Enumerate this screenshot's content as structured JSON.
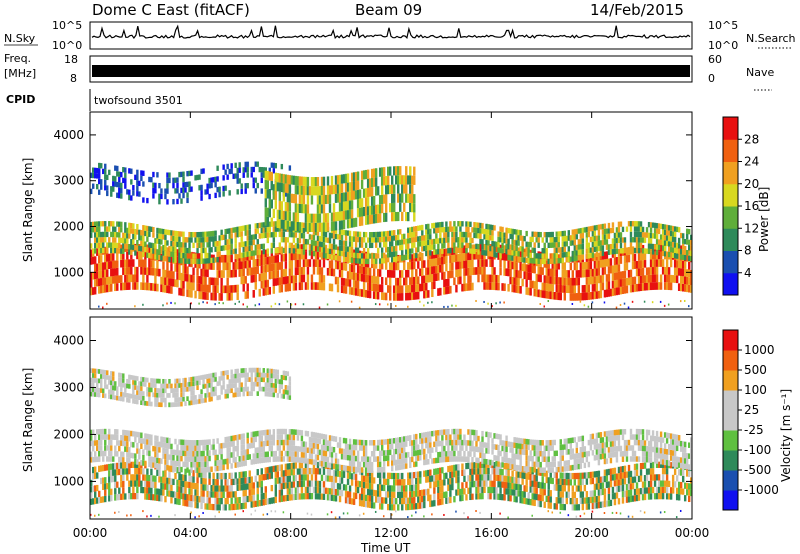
{
  "header": {
    "station": "Dome C East (fitACF)",
    "beam": "Beam 09",
    "date": "14/Feb/2015"
  },
  "summary_panels": {
    "nsky_label": "N.Sky",
    "nsky_ticks": [
      "10^5",
      "10^0"
    ],
    "nsearch_label": "N.Search",
    "nsearch_ticks": [
      "10^5",
      "10^0"
    ],
    "freq_label_top": "Freq.",
    "freq_label_unit": "[MHz]",
    "freq_ticks": [
      "18",
      "8"
    ],
    "nave_label": "Nave",
    "nave_ticks": [
      "60",
      "0"
    ],
    "cpid_label": "CPID",
    "cpid_value": "twofsound 3501"
  },
  "colors": {
    "power_scale": [
      "#1010f0",
      "#1a4fb0",
      "#2e8a5a",
      "#5fae3a",
      "#d8d820",
      "#f0a020",
      "#f06010",
      "#e81010"
    ],
    "velocity_scale": [
      "#e81010",
      "#f06010",
      "#f0a020",
      "#c8c8c8",
      "#c8c8c8",
      "#5fc040",
      "#2e8a5a",
      "#1a4fb0",
      "#1010f0"
    ]
  },
  "chart_data": [
    {
      "type": "heatmap",
      "panel": "power",
      "xlabel": "",
      "ylabel": "Slant Range [km]",
      "x_ticks": [
        "00:00",
        "04:00",
        "08:00",
        "12:00",
        "16:00",
        "20:00",
        "00:00"
      ],
      "x_hours": [
        0,
        4,
        8,
        12,
        16,
        20,
        24
      ],
      "xlim": [
        0,
        24
      ],
      "y_ticks": [
        1000,
        2000,
        3000,
        4000
      ],
      "ylim": [
        200,
        4500
      ],
      "colorbar_label": "Power [dB]",
      "colorbar_ticks": [
        "4",
        "8",
        "12",
        "16",
        "20",
        "24",
        "28"
      ],
      "colorbar_range": [
        0,
        32
      ],
      "echo_bands": [
        {
          "x_start": 0,
          "x_end": 24,
          "range_low": 500,
          "range_high": 1500,
          "level": "high"
        },
        {
          "x_start": 0,
          "x_end": 24,
          "range_low": 1300,
          "range_high": 2000,
          "level": "medium"
        },
        {
          "x_start": 0,
          "x_end": 8,
          "range_low": 2600,
          "range_high": 3300,
          "level": "low"
        },
        {
          "x_start": 7,
          "x_end": 13,
          "range_low": 2000,
          "range_high": 3200,
          "level": "medium"
        }
      ]
    },
    {
      "type": "heatmap",
      "panel": "velocity",
      "xlabel": "Time UT",
      "ylabel": "Slant Range [km]",
      "x_ticks": [
        "00:00",
        "04:00",
        "08:00",
        "12:00",
        "16:00",
        "20:00",
        "00:00"
      ],
      "x_hours": [
        0,
        4,
        8,
        12,
        16,
        20,
        24
      ],
      "xlim": [
        0,
        24
      ],
      "y_ticks": [
        1000,
        2000,
        3000,
        4000
      ],
      "ylim": [
        200,
        4500
      ],
      "colorbar_label": "Velocity [m s⁻¹]",
      "colorbar_ticks": [
        "1000",
        "500",
        "100",
        "25",
        "-25",
        "-100",
        "-500",
        "-1000"
      ],
      "echo_bands": [
        {
          "x_start": 0,
          "x_end": 24,
          "range_low": 500,
          "range_high": 1300,
          "level": "mixed"
        },
        {
          "x_start": 0,
          "x_end": 24,
          "range_low": 1300,
          "range_high": 2000,
          "level": "near-zero"
        },
        {
          "x_start": 0,
          "x_end": 8,
          "range_low": 2700,
          "range_high": 3300,
          "level": "near-zero"
        }
      ]
    }
  ]
}
